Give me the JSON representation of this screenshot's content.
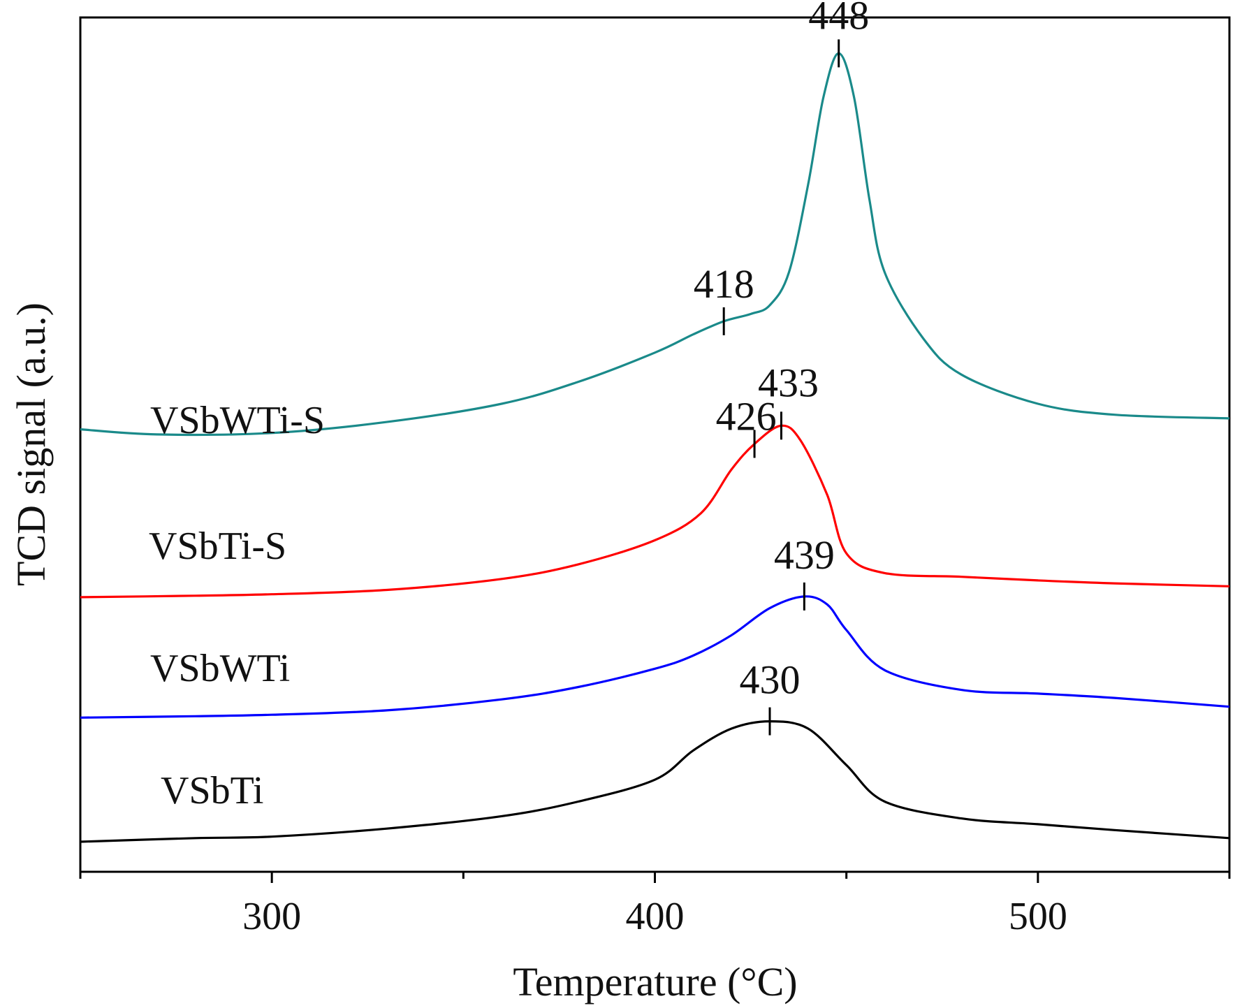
{
  "chart_data": {
    "type": "line",
    "title": "",
    "xlabel": "Temperature (°C)",
    "ylabel": "TCD signal (a.u.)",
    "xlim": [
      250,
      550
    ],
    "ylim": [
      0,
      100
    ],
    "x_major_ticks": [
      300,
      400,
      500
    ],
    "x_tick_labels": [
      "300",
      "400",
      "500"
    ],
    "x_minor_ticks": [
      250,
      350,
      450,
      550
    ],
    "yticks_shown": false,
    "grid": false,
    "legend": "none (series labeled inline at left)",
    "series": [
      {
        "name": "VSbTi",
        "color": "#000000",
        "x": [
          250,
          280,
          300,
          330,
          360,
          380,
          400,
          410,
          420,
          430,
          440,
          450,
          460,
          480,
          500,
          520,
          550
        ],
        "y": [
          0,
          0.5,
          0.7,
          1.8,
          3.5,
          5.5,
          8.5,
          12.5,
          15.5,
          16.5,
          15.5,
          10.5,
          5.5,
          3.2,
          2.4,
          1.6,
          0.5
        ],
        "peaks": [
          {
            "x": 430,
            "label": "430"
          }
        ]
      },
      {
        "name": "VSbWTi",
        "color": "#0000ff",
        "x": [
          250,
          280,
          300,
          330,
          360,
          380,
          400,
          410,
          420,
          430,
          439,
          445,
          450,
          460,
          480,
          500,
          520,
          550
        ],
        "y": [
          17,
          17.2,
          17.4,
          18,
          19.5,
          21.2,
          23.7,
          25.5,
          28.3,
          32,
          33.6,
          32.5,
          29,
          23.5,
          20.8,
          20.3,
          19.7,
          18.5
        ],
        "peaks": [
          {
            "x": 439,
            "label": "439"
          }
        ]
      },
      {
        "name": "VSbTi-S",
        "color": "#ff0000",
        "x": [
          250,
          280,
          300,
          330,
          360,
          380,
          400,
          412,
          420,
          426,
          433,
          438,
          445,
          450,
          460,
          480,
          500,
          520,
          550
        ],
        "y": [
          33.5,
          33.7,
          33.9,
          34.5,
          36,
          38,
          41.3,
          45,
          51,
          54.5,
          57,
          55,
          47.5,
          39.5,
          36.8,
          36.3,
          35.8,
          35.4,
          35
        ],
        "peaks": [
          {
            "x": 426,
            "label": "426"
          },
          {
            "x": 433,
            "label": "433"
          }
        ]
      },
      {
        "name": "VSbWTi-S",
        "color": "#1a8a8a",
        "x": [
          250,
          270,
          300,
          330,
          360,
          380,
          400,
          410,
          418,
          425,
          430,
          435,
          440,
          444,
          448,
          452,
          456,
          460,
          470,
          480,
          500,
          520,
          550
        ],
        "y": [
          56.5,
          55.8,
          56,
          57.5,
          60,
          63,
          67,
          69.5,
          71.3,
          72.3,
          73.5,
          78,
          90,
          102,
          108,
          102,
          88,
          78,
          69,
          64,
          60,
          58.5,
          58
        ],
        "peaks": [
          {
            "x": 418,
            "label": "418"
          },
          {
            "x": 448,
            "label": "448"
          }
        ]
      }
    ]
  }
}
